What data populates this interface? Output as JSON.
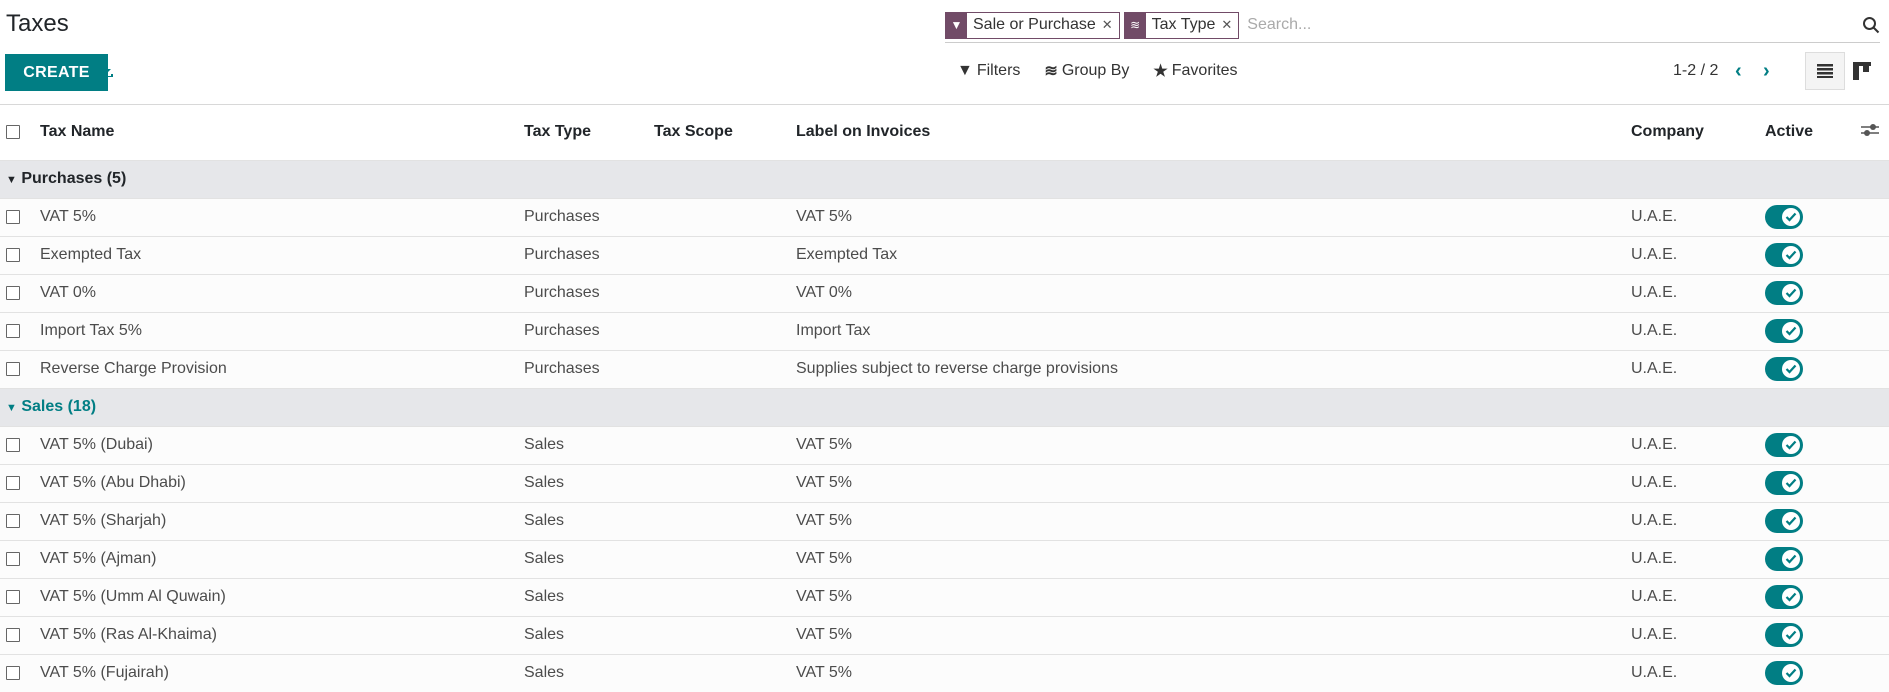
{
  "title": "Taxes",
  "toolbar": {
    "create_label": "CREATE"
  },
  "search": {
    "facets": [
      {
        "icon": "filter-icon",
        "value": "Sale or Purchase"
      },
      {
        "icon": "layers-icon",
        "value": "Tax Type"
      }
    ],
    "placeholder": "Search..."
  },
  "options": {
    "filters": "Filters",
    "group_by": "Group By",
    "favorites": "Favorites"
  },
  "pager": {
    "value": "1-2 / 2"
  },
  "columns": [
    "Tax Name",
    "Tax Type",
    "Tax Scope",
    "Label on Invoices",
    "Company",
    "Active"
  ],
  "colors": {
    "accent": "#017e84",
    "facet": "#714b67"
  },
  "groups": [
    {
      "label": "Purchases (5)",
      "rows": [
        {
          "name": "VAT 5%",
          "type": "Purchases",
          "scope": "",
          "label": "VAT 5%",
          "company": "U.A.E.",
          "active": true
        },
        {
          "name": "Exempted Tax",
          "type": "Purchases",
          "scope": "",
          "label": "Exempted Tax",
          "company": "U.A.E.",
          "active": true
        },
        {
          "name": "VAT 0%",
          "type": "Purchases",
          "scope": "",
          "label": "VAT 0%",
          "company": "U.A.E.",
          "active": true
        },
        {
          "name": "Import Tax 5%",
          "type": "Purchases",
          "scope": "",
          "label": "Import Tax",
          "company": "U.A.E.",
          "active": true
        },
        {
          "name": "Reverse Charge Provision",
          "type": "Purchases",
          "scope": "",
          "label": "Supplies subject to reverse charge provisions",
          "company": "U.A.E.",
          "active": true
        }
      ]
    },
    {
      "label": "Sales (18)",
      "rows": [
        {
          "name": "VAT 5% (Dubai)",
          "type": "Sales",
          "scope": "",
          "label": "VAT 5%",
          "company": "U.A.E.",
          "active": true
        },
        {
          "name": "VAT 5% (Abu Dhabi)",
          "type": "Sales",
          "scope": "",
          "label": "VAT 5%",
          "company": "U.A.E.",
          "active": true
        },
        {
          "name": "VAT 5% (Sharjah)",
          "type": "Sales",
          "scope": "",
          "label": "VAT 5%",
          "company": "U.A.E.",
          "active": true
        },
        {
          "name": "VAT 5% (Ajman)",
          "type": "Sales",
          "scope": "",
          "label": "VAT 5%",
          "company": "U.A.E.",
          "active": true
        },
        {
          "name": "VAT 5% (Umm Al Quwain)",
          "type": "Sales",
          "scope": "",
          "label": "VAT 5%",
          "company": "U.A.E.",
          "active": true
        },
        {
          "name": "VAT 5% (Ras Al-Khaima)",
          "type": "Sales",
          "scope": "",
          "label": "VAT 5%",
          "company": "U.A.E.",
          "active": true
        },
        {
          "name": "VAT 5% (Fujairah)",
          "type": "Sales",
          "scope": "",
          "label": "VAT 5%",
          "company": "U.A.E.",
          "active": true
        }
      ]
    }
  ]
}
